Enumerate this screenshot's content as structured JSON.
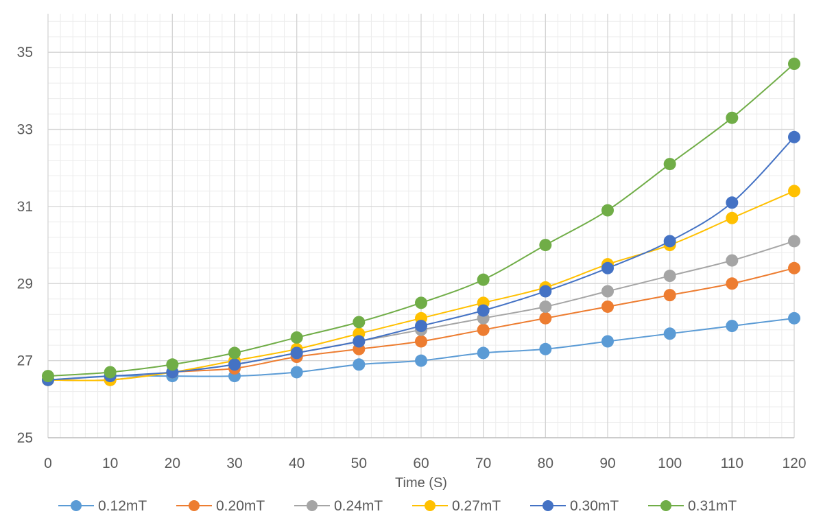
{
  "chart_data": {
    "type": "line",
    "title": "",
    "xlabel": "Time (S)",
    "ylabel": "",
    "x": [
      0,
      10,
      20,
      30,
      40,
      50,
      60,
      70,
      80,
      90,
      100,
      110,
      120
    ],
    "xlim": [
      0,
      120
    ],
    "ylim": [
      25,
      36
    ],
    "x_ticks": [
      0,
      10,
      20,
      30,
      40,
      50,
      60,
      70,
      80,
      90,
      100,
      110,
      120
    ],
    "y_ticks": [
      25,
      27,
      29,
      31,
      33,
      35
    ],
    "grid": true,
    "minor_grid": true,
    "legend_position": "bottom",
    "series": [
      {
        "name": "0.12mT",
        "color": "#5B9BD5",
        "values": [
          26.5,
          26.6,
          26.6,
          26.6,
          26.7,
          26.9,
          27.0,
          27.2,
          27.3,
          27.5,
          27.7,
          27.9,
          28.1
        ]
      },
      {
        "name": "0.20mT",
        "color": "#ED7D31",
        "values": [
          26.5,
          26.5,
          26.7,
          26.8,
          27.1,
          27.3,
          27.5,
          27.8,
          28.1,
          28.4,
          28.7,
          29.0,
          29.4
        ]
      },
      {
        "name": "0.24mT",
        "color": "#A5A5A5",
        "values": [
          26.5,
          26.5,
          26.7,
          26.9,
          27.2,
          27.5,
          27.8,
          28.1,
          28.4,
          28.8,
          29.2,
          29.6,
          30.1
        ]
      },
      {
        "name": "0.27mT",
        "color": "#FFC000",
        "values": [
          26.5,
          26.5,
          26.7,
          27.0,
          27.3,
          27.7,
          28.1,
          28.5,
          28.9,
          29.5,
          30.0,
          30.7,
          31.4
        ]
      },
      {
        "name": "0.30mT",
        "color": "#4472C4",
        "values": [
          26.5,
          26.6,
          26.7,
          26.9,
          27.2,
          27.5,
          27.9,
          28.3,
          28.8,
          29.4,
          30.1,
          31.1,
          32.8
        ]
      },
      {
        "name": "0.31mT",
        "color": "#70AD47",
        "values": [
          26.6,
          26.7,
          26.9,
          27.2,
          27.6,
          28.0,
          28.5,
          29.1,
          30.0,
          30.9,
          32.1,
          33.3,
          34.7
        ]
      }
    ]
  }
}
